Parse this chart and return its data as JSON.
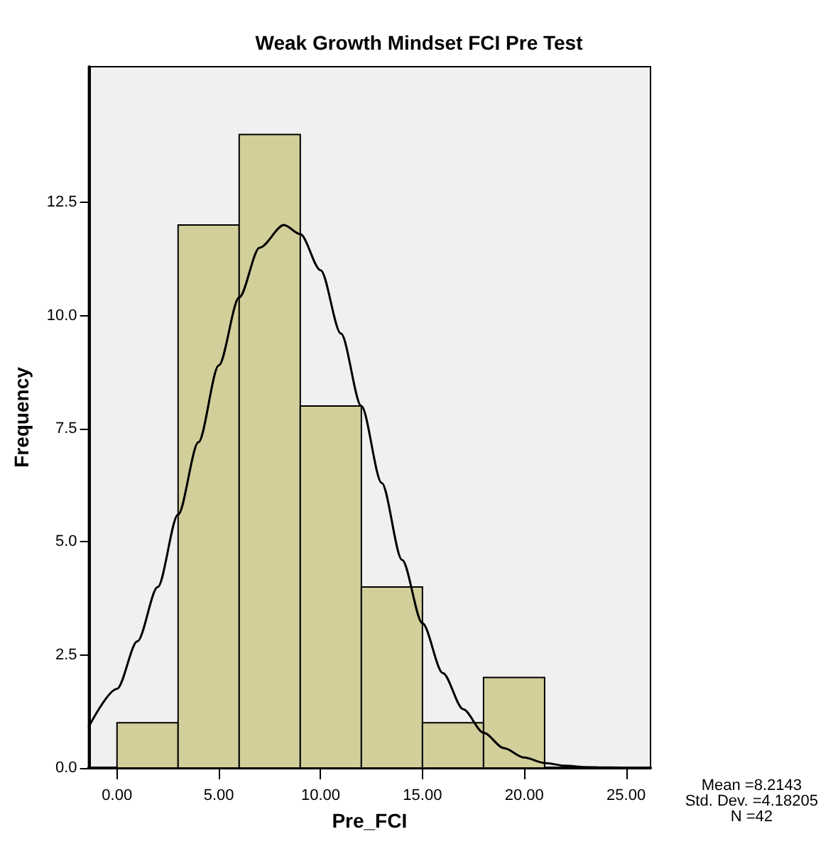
{
  "chart_data": {
    "type": "histogram",
    "title": "Weak Growth Mindset FCI Pre Test",
    "xlabel": "Pre_FCI",
    "ylabel": "Frequency",
    "bins": [
      0,
      3,
      6,
      9,
      12,
      15,
      18,
      21
    ],
    "values": [
      1,
      12,
      14,
      8,
      4,
      1,
      2
    ],
    "color": "#d3cf9b",
    "series": [
      {
        "type": "line",
        "color": "#000000",
        "marker": "none",
        "x": [
          -1.4,
          0,
          1,
          2,
          3,
          4,
          5,
          6,
          7,
          8.2,
          9,
          10,
          11,
          12,
          13,
          14,
          15,
          16,
          17,
          18,
          19,
          20,
          21,
          22,
          23,
          24,
          26.2
        ],
        "values": [
          0.9,
          1.75,
          2.8,
          4.0,
          5.6,
          7.2,
          8.9,
          10.4,
          11.5,
          12.0,
          11.8,
          11.0,
          9.6,
          8.0,
          6.3,
          4.6,
          3.2,
          2.1,
          1.3,
          0.78,
          0.44,
          0.23,
          0.11,
          0.05,
          0.02,
          0.01,
          0
        ]
      }
    ],
    "xlim": [
      -1.4,
      26.2
    ],
    "xticks": [
      {
        "value": 0,
        "label": "0.00"
      },
      {
        "value": 5,
        "label": "5.00"
      },
      {
        "value": 10,
        "label": "10.00"
      },
      {
        "value": 15,
        "label": "15.00"
      },
      {
        "value": 20,
        "label": "20.00"
      },
      {
        "value": 25,
        "label": "25.00"
      }
    ],
    "ylim": [
      0,
      15.5
    ],
    "yticks": [
      {
        "value": 0,
        "label": "0.0"
      },
      {
        "value": 2.5,
        "label": "2.5"
      },
      {
        "value": 5,
        "label": "5.0"
      },
      {
        "value": 7.5,
        "label": "7.5"
      },
      {
        "value": 10,
        "label": "10.0"
      },
      {
        "value": 12.5,
        "label": "12.5"
      }
    ],
    "grid": false,
    "annotations": [
      "Mean =8.2143\nStd. Dev. =4.18205\nN =42"
    ]
  }
}
